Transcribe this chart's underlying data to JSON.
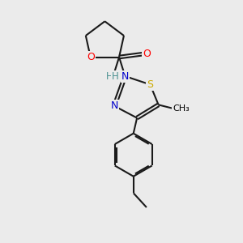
{
  "bg_color": "#ebebeb",
  "atom_colors": {
    "C": "#000000",
    "N": "#0000cc",
    "O": "#ff0000",
    "S": "#ccaa00",
    "H": "#4a9090"
  },
  "line_color": "#1a1a1a",
  "line_width": 1.5,
  "fig_size": [
    3.0,
    3.0
  ],
  "dpi": 100
}
